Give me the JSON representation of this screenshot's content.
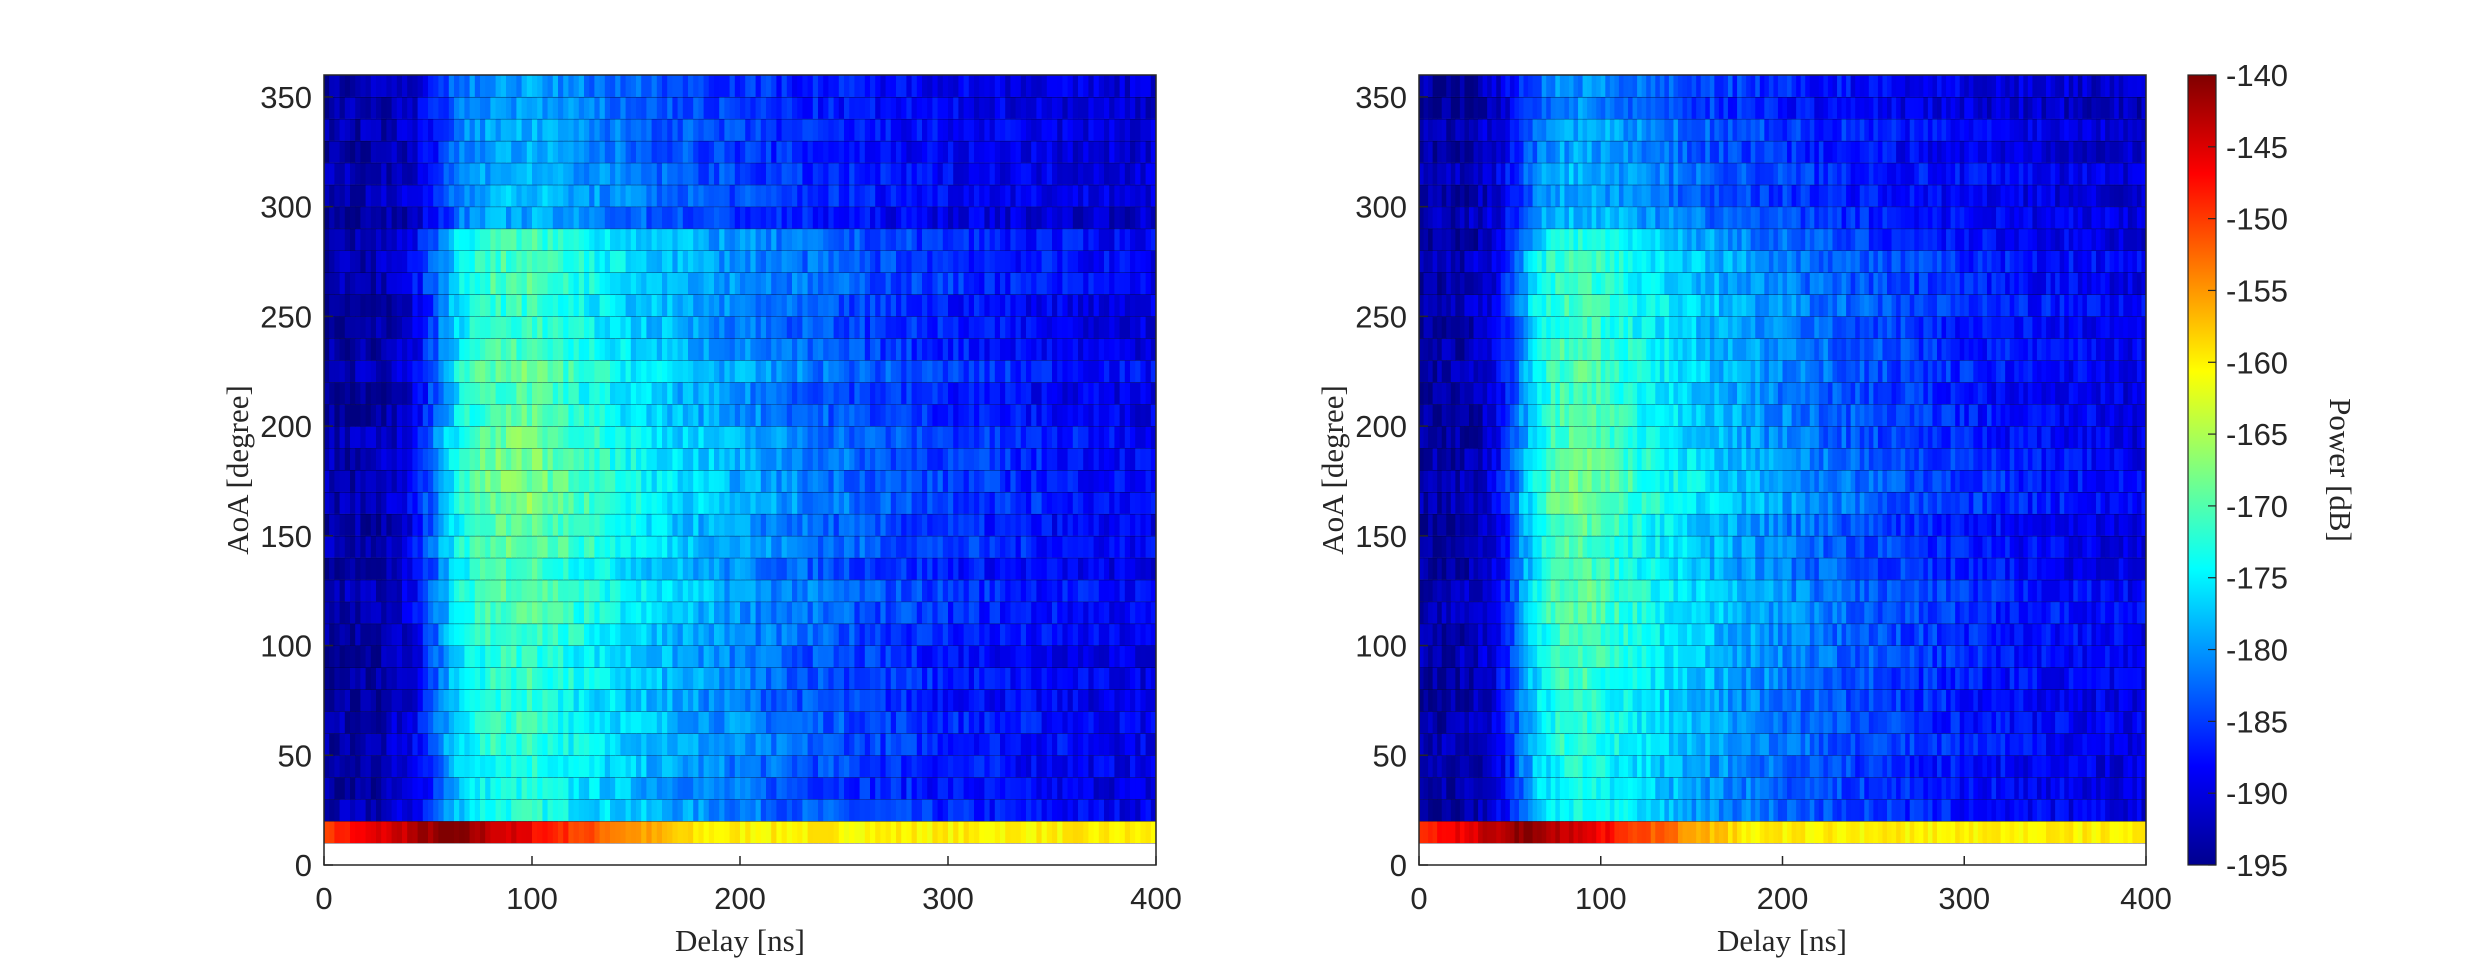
{
  "chart_data": [
    {
      "type": "heatmap",
      "xlabel": "Delay [ns]",
      "ylabel": "AoA [degree]",
      "xlim": [
        0,
        400
      ],
      "ylim": [
        0,
        360
      ],
      "xticks": [
        0,
        100,
        200,
        300,
        400
      ],
      "yticks": [
        0,
        50,
        100,
        150,
        200,
        250,
        300,
        350
      ],
      "aoa_bins": [
        0,
        10,
        20,
        30,
        40,
        50,
        60,
        70,
        80,
        90,
        100,
        110,
        120,
        130,
        140,
        150,
        160,
        170,
        180,
        190,
        200,
        210,
        220,
        230,
        240,
        250,
        260,
        270,
        280,
        290,
        300,
        310,
        320,
        330,
        340,
        350
      ],
      "floor_power_db": -193,
      "peak_delay_ns": 100,
      "peak_power_db": -168,
      "strong_row": {
        "aoa_range": [
          10,
          20
        ],
        "peak_delay_ns": 60,
        "peak_power_db": -140,
        "tail_power_db": -160
      },
      "weak_aoa_range": [
        290,
        360
      ]
    },
    {
      "type": "heatmap",
      "xlabel": "Delay [ns]",
      "ylabel": "AoA [degree]",
      "xlim": [
        0,
        400
      ],
      "ylim": [
        0,
        360
      ],
      "xticks": [
        0,
        100,
        200,
        300,
        400
      ],
      "yticks": [
        0,
        50,
        100,
        150,
        200,
        250,
        300,
        350
      ],
      "aoa_bins": [
        0,
        10,
        20,
        30,
        40,
        50,
        60,
        70,
        80,
        90,
        100,
        110,
        120,
        130,
        140,
        150,
        160,
        170,
        180,
        190,
        200,
        210,
        220,
        230,
        240,
        250,
        260,
        270,
        280,
        290,
        300,
        310,
        320,
        330,
        340,
        350
      ],
      "floor_power_db": -193,
      "peak_delay_ns": 90,
      "peak_power_db": -168,
      "strong_row": {
        "aoa_range": [
          10,
          20
        ],
        "peak_delay_ns": 60,
        "peak_power_db": -140,
        "tail_power_db": -160
      },
      "weak_aoa_range": [
        290,
        360
      ]
    }
  ],
  "colorbar": {
    "label": "Power [dB]",
    "range": [
      -195,
      -140
    ],
    "ticks": [
      -140,
      -145,
      -150,
      -155,
      -160,
      -165,
      -170,
      -175,
      -180,
      -185,
      -190,
      -195
    ],
    "colormap": "jet"
  }
}
